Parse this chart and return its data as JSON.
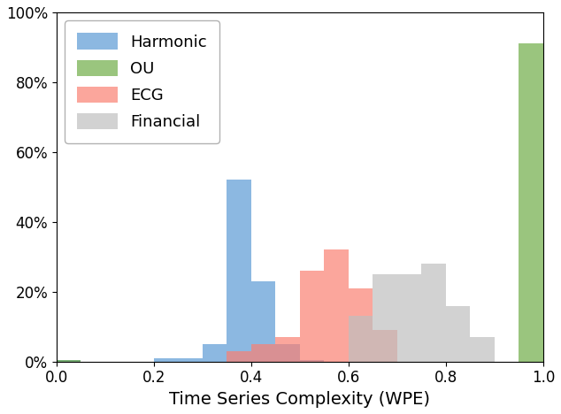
{
  "title": "",
  "xlabel": "Time Series Complexity (WPE)",
  "ylabel": "",
  "xlim": [
    0.0,
    1.0
  ],
  "ylim": [
    0.0,
    1.0
  ],
  "ytick_labels": [
    "0%",
    "20%",
    "40%",
    "60%",
    "80%",
    "100%"
  ],
  "ytick_values": [
    0.0,
    0.2,
    0.4,
    0.6,
    0.8,
    1.0
  ],
  "xtick_values": [
    0.0,
    0.2,
    0.4,
    0.6,
    0.8,
    1.0
  ],
  "bin_width": 0.05,
  "series": [
    {
      "name": "Harmonic",
      "color": "#5B9BD5",
      "alpha": 0.7,
      "bins": [
        0.0,
        0.05,
        0.1,
        0.15,
        0.2,
        0.25,
        0.3,
        0.35,
        0.4,
        0.45,
        0.5,
        0.55,
        0.6,
        0.65,
        0.7,
        0.75,
        0.8,
        0.85,
        0.9,
        0.95
      ],
      "heights": [
        0.005,
        0.0,
        0.0,
        0.0,
        0.01,
        0.01,
        0.05,
        0.52,
        0.23,
        0.05,
        0.005,
        0.0,
        0.0,
        0.0,
        0.0,
        0.0,
        0.0,
        0.0,
        0.0,
        0.0
      ]
    },
    {
      "name": "OU",
      "color": "#70AD47",
      "alpha": 0.7,
      "bins": [
        0.0,
        0.05,
        0.1,
        0.15,
        0.2,
        0.25,
        0.3,
        0.35,
        0.4,
        0.45,
        0.5,
        0.55,
        0.6,
        0.65,
        0.7,
        0.75,
        0.8,
        0.85,
        0.9,
        0.95
      ],
      "heights": [
        0.005,
        0.0,
        0.0,
        0.0,
        0.0,
        0.0,
        0.0,
        0.0,
        0.0,
        0.0,
        0.0,
        0.0,
        0.0,
        0.0,
        0.0,
        0.0,
        0.0,
        0.0,
        0.0,
        0.91
      ]
    },
    {
      "name": "ECG",
      "color": "#FA8072",
      "alpha": 0.7,
      "bins": [
        0.0,
        0.05,
        0.1,
        0.15,
        0.2,
        0.25,
        0.3,
        0.35,
        0.4,
        0.45,
        0.5,
        0.55,
        0.6,
        0.65,
        0.7,
        0.75,
        0.8,
        0.85,
        0.9,
        0.95
      ],
      "heights": [
        0.0,
        0.0,
        0.0,
        0.0,
        0.0,
        0.0,
        0.0,
        0.03,
        0.05,
        0.07,
        0.26,
        0.32,
        0.21,
        0.09,
        0.0,
        0.0,
        0.0,
        0.0,
        0.0,
        0.0
      ]
    },
    {
      "name": "Financial",
      "color": "#BFBFBF",
      "alpha": 0.7,
      "bins": [
        0.0,
        0.05,
        0.1,
        0.15,
        0.2,
        0.25,
        0.3,
        0.35,
        0.4,
        0.45,
        0.5,
        0.55,
        0.6,
        0.65,
        0.7,
        0.75,
        0.8,
        0.85,
        0.9,
        0.95
      ],
      "heights": [
        0.0,
        0.0,
        0.0,
        0.0,
        0.0,
        0.0,
        0.0,
        0.0,
        0.0,
        0.0,
        0.0,
        0.0,
        0.13,
        0.25,
        0.25,
        0.28,
        0.16,
        0.07,
        0.0,
        0.0
      ]
    }
  ],
  "legend_loc": "upper left",
  "legend_fontsize": 13,
  "xlabel_fontsize": 14,
  "tick_fontsize": 12,
  "figsize": [
    6.34,
    4.68
  ],
  "dpi": 100
}
